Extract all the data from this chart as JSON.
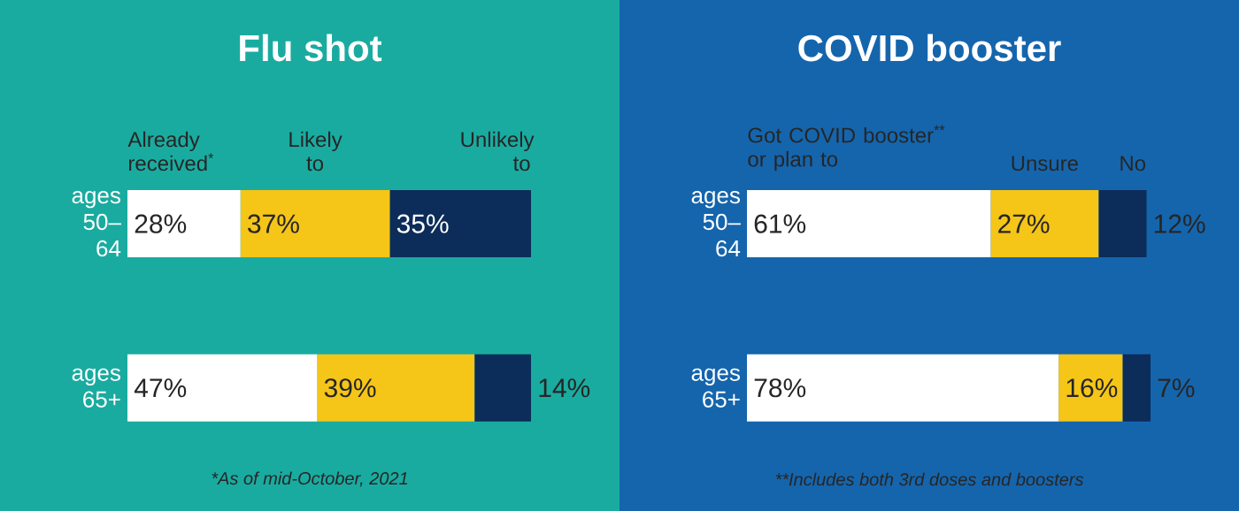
{
  "chart_data": [
    {
      "type": "bar",
      "orientation": "horizontal",
      "stacked": true,
      "title": "Flu shot",
      "categories": [
        "ages 50–64",
        "ages 65+"
      ],
      "series": [
        {
          "name": "Already received$^{*}$",
          "color": "#ffffff",
          "values": [
            28,
            47
          ],
          "value_labels": [
            "28%",
            "47%"
          ]
        },
        {
          "name": "Likely to",
          "color": "#f5c518",
          "values": [
            37,
            39
          ],
          "value_labels": [
            "37%",
            "39%"
          ]
        },
        {
          "name": "Unlikely to",
          "color": "#0c2c5a",
          "values": [
            35,
            14
          ],
          "value_labels": [
            "35%",
            "14%"
          ]
        }
      ],
      "annotations": [
        "*As of mid-October, 2021"
      ]
    },
    {
      "type": "bar",
      "orientation": "horizontal",
      "stacked": true,
      "title": "COVID booster",
      "categories": [
        "ages 50–64",
        "ages 65+"
      ],
      "series": [
        {
          "name": "Got COVID booster$^{**}$ or plan to",
          "color": "#ffffff",
          "values": [
            61,
            78
          ],
          "value_labels": [
            "61%",
            "78%"
          ]
        },
        {
          "name": "Unsure",
          "color": "#f5c518",
          "values": [
            27,
            16
          ],
          "value_labels": [
            "27%",
            "16%"
          ]
        },
        {
          "name": "No",
          "color": "#0c2c5a",
          "values": [
            12,
            7
          ],
          "value_labels": [
            "12%",
            "7%"
          ]
        }
      ],
      "annotations": [
        "**Includes both 3rd doses and boosters"
      ]
    }
  ]
}
